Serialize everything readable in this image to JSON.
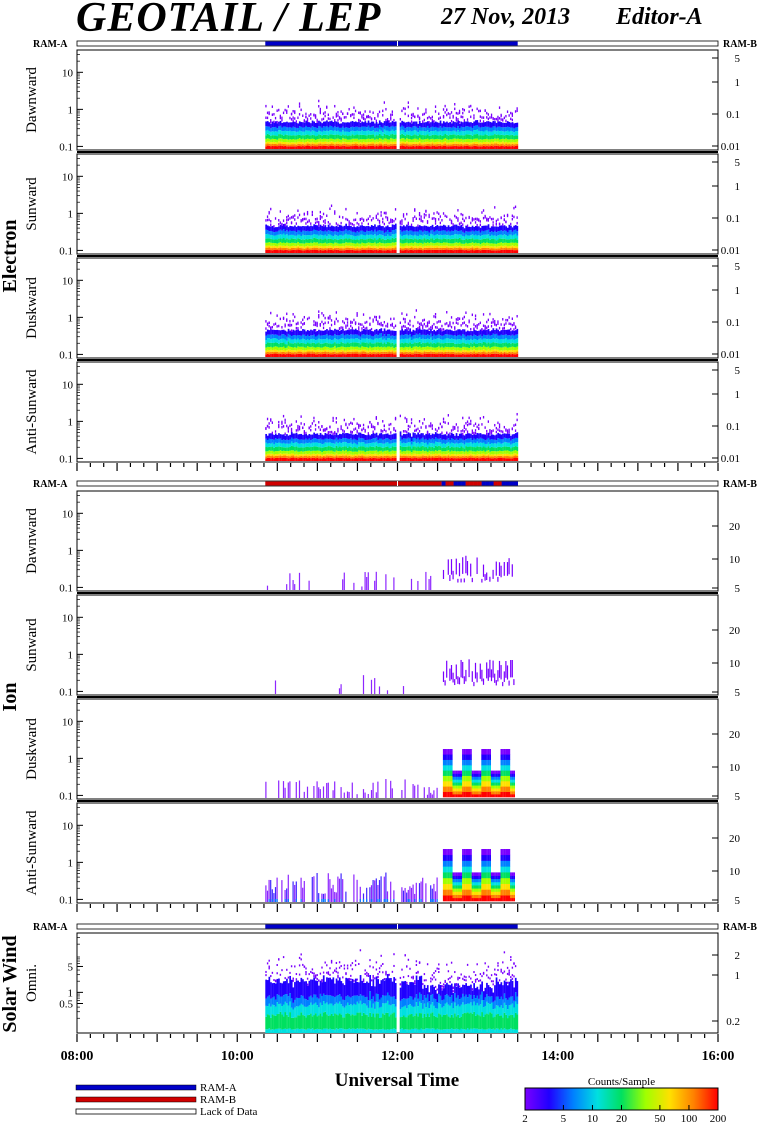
{
  "header": {
    "title": "GEOTAIL / LEP",
    "date": "27 Nov, 2013",
    "editor": "Editor-A"
  },
  "ram_labels": {
    "left": "RAM-A",
    "right": "RAM-B"
  },
  "groups": [
    {
      "name": "Electron",
      "panels": [
        "Dawnward",
        "Sunward",
        "Duskward",
        "Anti-Sunward"
      ]
    },
    {
      "name": "Ion",
      "panels": [
        "Dawnward",
        "Sunward",
        "Duskward",
        "Anti-Sunward"
      ]
    },
    {
      "name": "Solar Wind",
      "panels": [
        "Omni."
      ]
    }
  ],
  "left_ticks": {
    "standard": [
      "10",
      "1",
      "0.1"
    ],
    "omni": [
      "5",
      "1",
      "0.5"
    ]
  },
  "right_ticks": {
    "electron": [
      "5",
      "1",
      "0.1",
      "0.01"
    ],
    "ion": [
      "20",
      "10",
      "5"
    ],
    "omni": [
      "2",
      "1",
      "0.2"
    ]
  },
  "x_axis": {
    "label": "Universal Time",
    "ticks": [
      "08:00",
      "10:00",
      "12:00",
      "14:00",
      "16:00"
    ]
  },
  "legend": {
    "ram_a": "RAM-A",
    "ram_b": "RAM-B",
    "lack": "Lack of Data",
    "ram_a_color": "#0000c8",
    "ram_b_color": "#d00000"
  },
  "colorbar": {
    "title": "Counts/Sample",
    "ticks": [
      "2",
      "5",
      "10",
      "20",
      "50",
      "100",
      "200"
    ],
    "colors": [
      "#7a00ff",
      "#2000ff",
      "#0080ff",
      "#00e0e0",
      "#00e060",
      "#a0ff00",
      "#ffe000",
      "#ff8000",
      "#ff0000"
    ]
  },
  "chart_data": {
    "type": "heatmap",
    "title": "GEOTAIL / LEP",
    "xlabel": "Universal Time",
    "xlim": [
      "08:00",
      "16:00"
    ],
    "data_coverage": {
      "start": "10:20",
      "end": "13:30"
    },
    "electron_ram_mode": "RAM-A",
    "ion_ram_mode": {
      "10:20-12:30": "RAM-B",
      "12:30-13:30": "RAM-A/RAM-B mixed"
    },
    "solar_wind_ram_mode": "RAM-A",
    "ion_enhancement_interval": {
      "start": "12:32",
      "end": "13:28"
    },
    "colorbar": {
      "label": "Counts/Sample",
      "range": [
        2,
        200
      ],
      "scale": "log"
    }
  }
}
